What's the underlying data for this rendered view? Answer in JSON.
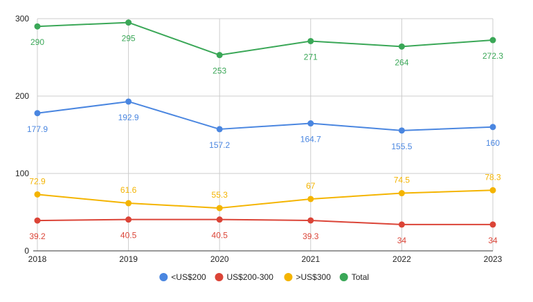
{
  "chart_data": {
    "type": "line",
    "title": "",
    "xlabel": "",
    "ylabel": "",
    "ylim": [
      0,
      300
    ],
    "y_ticks": [
      "0",
      "100",
      "200",
      "300"
    ],
    "categories": [
      "2018",
      "2019",
      "2020",
      "2021",
      "2022",
      "2023"
    ],
    "grid": true,
    "legend_position": "bottom",
    "series": [
      {
        "name": "<US$200",
        "color": "#4a86e0",
        "values": [
          177.9,
          192.9,
          157.2,
          164.7,
          155.5,
          160
        ],
        "labels": [
          "177.9",
          "192.9",
          "157.2",
          "164.7",
          "155.5",
          "160"
        ],
        "label_position": "below"
      },
      {
        "name": "US$200-300",
        "color": "#db4437",
        "values": [
          39.2,
          40.5,
          40.5,
          39.3,
          34,
          34
        ],
        "labels": [
          "39.2",
          "40.5",
          "40.5",
          "39.3",
          "34",
          "34"
        ],
        "label_position": "below"
      },
      {
        "name": ">US$300",
        "color": "#f4b400",
        "values": [
          72.9,
          61.6,
          55.3,
          67,
          74.5,
          78.3
        ],
        "labels": [
          "72.9",
          "61.6",
          "55.3",
          "67",
          "74.5",
          "78.3"
        ],
        "label_position": "above"
      },
      {
        "name": "Total",
        "color": "#3aa757",
        "values": [
          290,
          295,
          253,
          271,
          264,
          272.3
        ],
        "labels": [
          "290",
          "295",
          "253",
          "271",
          "264",
          "272.3"
        ],
        "label_position": "below"
      }
    ]
  }
}
